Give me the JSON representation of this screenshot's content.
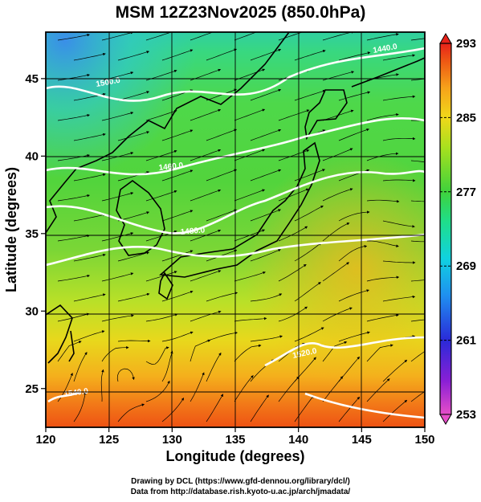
{
  "title": "MSM 12Z23Nov2025 (850.0hPa)",
  "x_axis": {
    "label": "Longitude (degrees)",
    "ticks": [
      "120",
      "125",
      "130",
      "135",
      "140",
      "145",
      "150"
    ],
    "range": [
      120,
      150
    ]
  },
  "y_axis": {
    "label": "Latitude  (degrees)",
    "ticks": [
      "25",
      "30",
      "35",
      "40",
      "45"
    ],
    "range": [
      22.5,
      48
    ]
  },
  "colorbar": {
    "ticks": [
      "293",
      "285",
      "277",
      "269",
      "261",
      "253"
    ],
    "min": 253,
    "max": 293,
    "colors": [
      "#e64ec8",
      "#8a1fd6",
      "#2a2ad8",
      "#1f8ff0",
      "#10d2e0",
      "#1fde8a",
      "#3fd23c",
      "#a8e01e",
      "#f0d81a",
      "#f7a21a",
      "#ee5a14",
      "#e8221a"
    ]
  },
  "contours": {
    "labels": [
      "1440.0",
      "1460.0",
      "1480.0",
      "1500.0",
      "1520.0",
      "1540.0"
    ],
    "color": "#ffffff"
  },
  "credits": {
    "line1": "Drawing by DCL (https://www.gfd-dennou.org/library/dcl/)",
    "line2": "Data from http://database.rish.kyoto-u.ac.jp/arch/jmadata/"
  }
}
